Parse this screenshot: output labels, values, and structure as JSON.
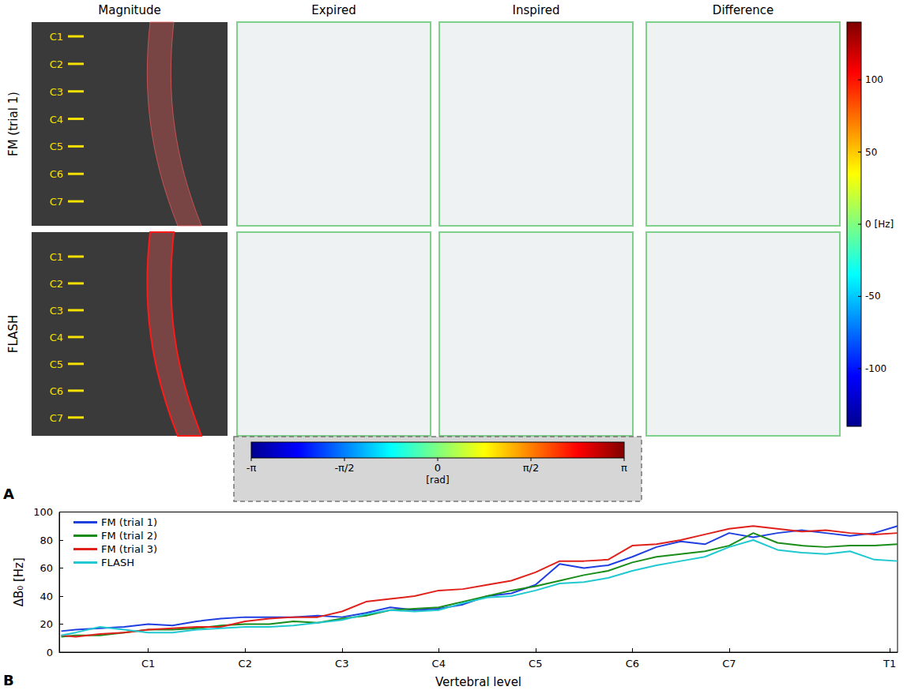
{
  "panel_a": {
    "letter": "A",
    "columns": [
      "Magnitude",
      "Expired",
      "Inspired",
      "Difference"
    ],
    "rows": [
      "FM (trial 1)",
      "FLASH"
    ],
    "vertebral_labels": [
      "C1",
      "C2",
      "C3",
      "C4",
      "C5",
      "C6",
      "C7"
    ],
    "colorbar_hz": {
      "range": [
        -140,
        140
      ],
      "ticks": [
        100,
        50,
        {
          "value": 0,
          "label": "0 [Hz]"
        },
        -50,
        -100
      ]
    },
    "colorbar_phase": {
      "range": [
        -3.1416,
        3.1416
      ],
      "ticks": [
        {
          "value": -3.1416,
          "label": "-π"
        },
        {
          "value": -1.5708,
          "label": "-π/2"
        },
        0,
        {
          "value": 1.5708,
          "label": "π/2"
        },
        {
          "value": 3.1416,
          "label": "π"
        }
      ],
      "unit_label": "[rad]"
    }
  },
  "chart_data": {
    "type": "line",
    "letter": "B",
    "x_label": "Vertebral level",
    "y_label": "ΔB₀ [Hz]",
    "x": [
      0.1,
      0.25,
      0.5,
      0.75,
      1,
      1.25,
      1.5,
      1.75,
      2,
      2.25,
      2.5,
      2.75,
      3,
      3.25,
      3.5,
      3.75,
      4,
      4.25,
      4.5,
      4.75,
      5,
      5.25,
      5.5,
      5.75,
      6,
      6.25,
      6.5,
      6.75,
      7,
      7.25,
      7.5,
      7.75,
      8,
      8.25,
      8.5,
      8.74
    ],
    "series": [
      {
        "name": "FM (trial 1)",
        "color": "#1f3fe0",
        "values": [
          15,
          16,
          17,
          18,
          20,
          19,
          22,
          24,
          25,
          25,
          25,
          26,
          25,
          28,
          32,
          30,
          31,
          34,
          40,
          42,
          48,
          63,
          60,
          62,
          68,
          75,
          79,
          77,
          85,
          82,
          85,
          87,
          85,
          83,
          85,
          90
        ]
      },
      {
        "name": "FM (trial 2)",
        "color": "#1a8c1a",
        "values": [
          11,
          12,
          12,
          14,
          16,
          16,
          17,
          19,
          20,
          20,
          22,
          21,
          24,
          26,
          30,
          31,
          32,
          36,
          40,
          44,
          47,
          51,
          55,
          58,
          64,
          68,
          70,
          72,
          76,
          85,
          78,
          76,
          75,
          76,
          76,
          77
        ]
      },
      {
        "name": "FM (trial 3)",
        "color": "#e0201a",
        "values": [
          12,
          11,
          13,
          14,
          16,
          17,
          18,
          18,
          22,
          24,
          25,
          25,
          29,
          36,
          38,
          40,
          44,
          45,
          48,
          51,
          57,
          65,
          65,
          66,
          76,
          77,
          80,
          84,
          88,
          90,
          88,
          86,
          87,
          85,
          84,
          85
        ]
      },
      {
        "name": "FLASH",
        "color": "#20c8d0",
        "values": [
          12,
          14,
          18,
          16,
          14,
          14,
          16,
          17,
          18,
          18,
          19,
          21,
          23,
          27,
          30,
          29,
          30,
          35,
          39,
          40,
          44,
          49,
          50,
          53,
          58,
          62,
          65,
          68,
          75,
          80,
          73,
          71,
          70,
          72,
          66,
          65
        ]
      }
    ],
    "xlim": [
      0.08,
      8.74
    ],
    "xticks": [
      {
        "value": 1,
        "label": "C1"
      },
      {
        "value": 2,
        "label": "C2"
      },
      {
        "value": 3,
        "label": "C3"
      },
      {
        "value": 4,
        "label": "C4"
      },
      {
        "value": 5,
        "label": "C5"
      },
      {
        "value": 6,
        "label": "C6"
      },
      {
        "value": 7,
        "label": "C7"
      },
      {
        "value": 8.66,
        "label": "T1"
      }
    ],
    "ylim": [
      0,
      100
    ],
    "yticks": [
      0,
      20,
      40,
      60,
      80,
      100
    ],
    "grid": false,
    "legend": "upper left"
  }
}
